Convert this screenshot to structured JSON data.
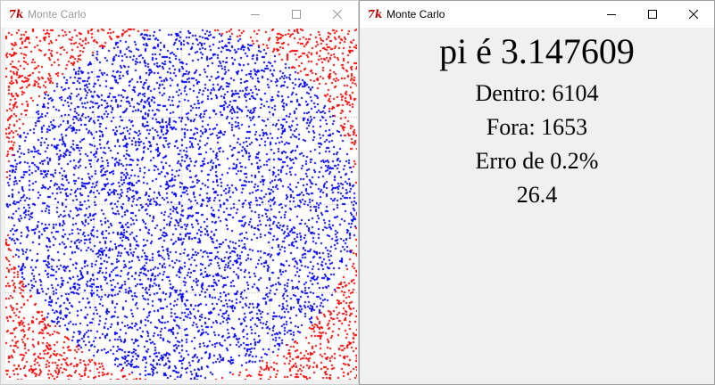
{
  "windows": {
    "left": {
      "title": "Monte Carlo",
      "icon": "tk-feather-icon"
    },
    "right": {
      "title": "Monte Carlo",
      "icon": "tk-feather-icon"
    }
  },
  "icon_glyph": "7k",
  "results": {
    "pi_line": "pi é 3.147609",
    "dentro_line": "Dentro: 6104",
    "fora_line": "Fora: 1653",
    "erro_line": "Erro de 0.2%",
    "tempo_line": "26.4"
  },
  "simulation": {
    "inside_count": 6104,
    "outside_count": 1653,
    "inside_color": "#0000ff",
    "outside_color": "#ff0000",
    "grid_color": "#000000"
  }
}
